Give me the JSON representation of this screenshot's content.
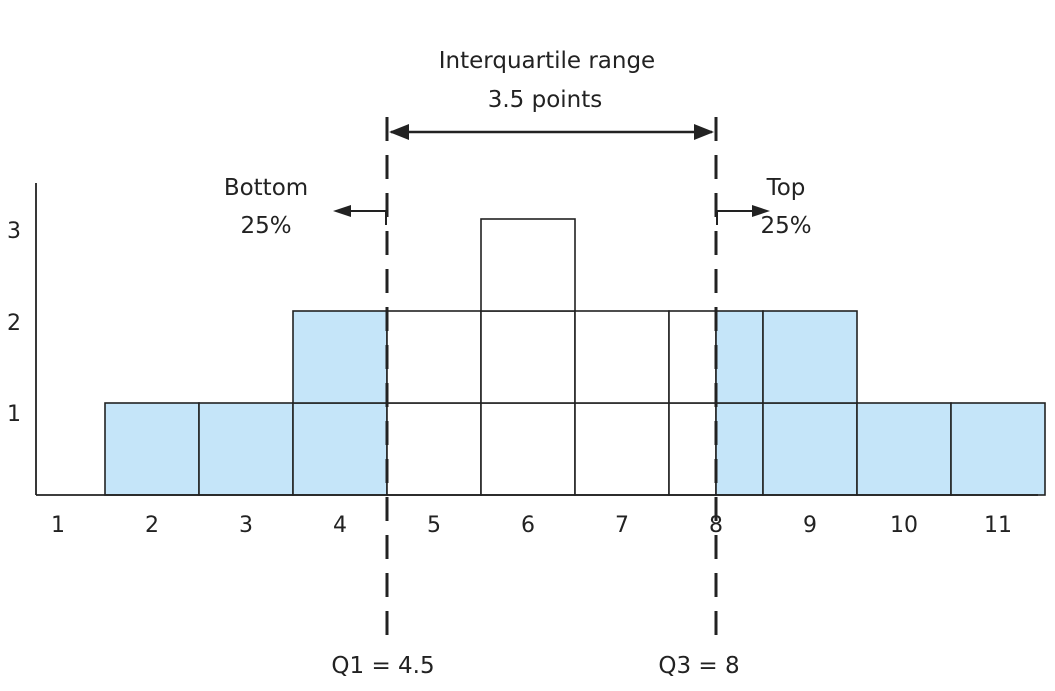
{
  "chart_data": {
    "type": "bar",
    "categories": [
      "1",
      "2",
      "3",
      "4",
      "5",
      "6",
      "7",
      "8",
      "9",
      "10",
      "11"
    ],
    "values": [
      0,
      1,
      1,
      2,
      2,
      3,
      2,
      2,
      2,
      1,
      1
    ],
    "y_ticks": [
      "1",
      "2",
      "3"
    ],
    "ylim": [
      0,
      3
    ],
    "shaded_bins": [
      {
        "from": 1.5,
        "to": 4.5,
        "count": 4
      },
      {
        "from": 8,
        "to": 11.5,
        "count": 4
      }
    ],
    "q1": 4.5,
    "q3": 8,
    "iqr_label": "Interquartile range",
    "iqr_value": "3.5 points",
    "bottom_label": "Bottom",
    "bottom_pct": "25%",
    "top_label": "Top",
    "top_pct": "25%",
    "q1_label": "Q1 = 4.5",
    "q3_label": "Q3 = 8",
    "colors": {
      "shade": "#c5e5f9",
      "line": "#222222"
    }
  }
}
